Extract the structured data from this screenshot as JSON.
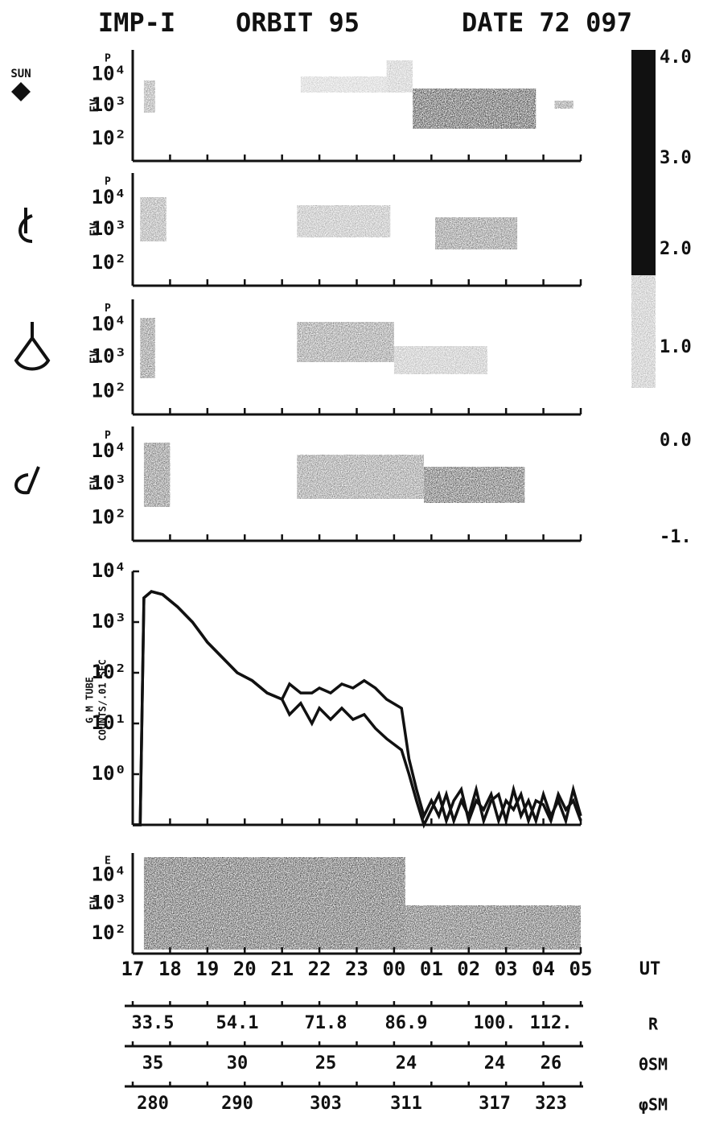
{
  "title": [
    "IMP-I",
    "ORBIT 95",
    "DATE 72 097"
  ],
  "spectrogram_panels": [
    {
      "icon_label": "SUN",
      "species": "P",
      "unit": "EV",
      "yticks": [
        "10⁴",
        "10³",
        "10²"
      ]
    },
    {
      "species": "P",
      "unit": "EV",
      "yticks": [
        "10⁴",
        "10³",
        "10²"
      ]
    },
    {
      "species": "P",
      "unit": "EV",
      "yticks": [
        "10⁴",
        "10³",
        "10²"
      ]
    },
    {
      "species": "P",
      "unit": "EV",
      "yticks": [
        "10⁴",
        "10³",
        "10²"
      ]
    },
    {
      "species": "E",
      "unit": "EV",
      "yticks": [
        "10⁴",
        "10³",
        "10²"
      ]
    }
  ],
  "color_scale": {
    "labels": [
      "4.0",
      "3.0",
      "2.0",
      "1.0",
      "0.0",
      "-1."
    ]
  },
  "chart_data": {
    "type": "line",
    "y_label": [
      "G M TUBE",
      "COUNTS/.01 SEC"
    ],
    "x_label": "UT",
    "log_y": true,
    "x": [
      17.0,
      17.2,
      17.3,
      17.5,
      17.8,
      18.2,
      18.6,
      19.0,
      19.4,
      19.8,
      20.2,
      20.6,
      21.0,
      21.2,
      21.5,
      21.8,
      22.0,
      22.3,
      22.6,
      22.9,
      23.2,
      23.5,
      23.8,
      24.2,
      24.4,
      24.6,
      24.8,
      25.0,
      25.2,
      25.4,
      25.6,
      25.8,
      26.0,
      26.2,
      26.4,
      26.6,
      26.8,
      27.0,
      27.2,
      27.4,
      27.6,
      27.8,
      28.0,
      28.2,
      28.4,
      28.6,
      28.8,
      29.0
    ],
    "series": [
      {
        "color": "#111111",
        "values": [
          0.1,
          0.1,
          3000,
          4000,
          3500,
          2000,
          1000,
          400,
          200,
          100,
          70,
          40,
          30,
          60,
          40,
          40,
          50,
          40,
          60,
          50,
          70,
          50,
          30,
          20,
          2,
          0.5,
          0.15,
          0.3,
          0.15,
          0.4,
          0.12,
          0.3,
          0.15,
          0.5,
          0.12,
          0.3,
          0.4,
          0.12,
          0.5,
          0.15,
          0.3,
          0.12,
          0.4,
          0.15,
          0.3,
          0.12,
          0.5,
          0.15
        ]
      },
      {
        "color": "#111111",
        "values": [
          0.1,
          0.1,
          3000,
          4000,
          3500,
          2000,
          1000,
          400,
          200,
          100,
          70,
          40,
          30,
          15,
          25,
          10,
          20,
          12,
          20,
          12,
          15,
          8,
          5,
          3,
          1,
          0.3,
          0.1,
          0.2,
          0.4,
          0.12,
          0.3,
          0.5,
          0.12,
          0.3,
          0.2,
          0.4,
          0.12,
          0.3,
          0.2,
          0.4,
          0.12,
          0.3,
          0.25,
          0.12,
          0.4,
          0.2,
          0.3,
          0.12
        ]
      }
    ],
    "xlim": [
      17,
      29
    ],
    "xticks": [
      17,
      18,
      19,
      20,
      21,
      22,
      23,
      {
        "value": 24,
        "label": "00"
      },
      {
        "value": 25,
        "label": "01"
      },
      {
        "value": 26,
        "label": "02"
      },
      {
        "value": 27,
        "label": "03"
      },
      {
        "value": 28,
        "label": "04"
      },
      {
        "value": 29,
        "label": "05"
      }
    ],
    "ylim": [
      0.1,
      10000
    ],
    "yticks": [
      {
        "value": 1,
        "label": "10⁰"
      },
      {
        "value": 10,
        "label": "10¹"
      },
      {
        "value": 100,
        "label": "10²"
      },
      {
        "value": 1000,
        "label": "10³"
      },
      {
        "value": 10000,
        "label": "10⁴"
      }
    ]
  },
  "ephemeris": [
    {
      "name": "R",
      "values": [
        "33.5",
        "54.1",
        "71.8",
        "86.9",
        "100.",
        "112."
      ]
    },
    {
      "name": "θSM",
      "values": [
        "35",
        "30",
        "25",
        "24",
        "24",
        "26"
      ]
    },
    {
      "name": "φSM",
      "values": [
        "280",
        "290",
        "303",
        "311",
        "317",
        "323"
      ]
    }
  ]
}
